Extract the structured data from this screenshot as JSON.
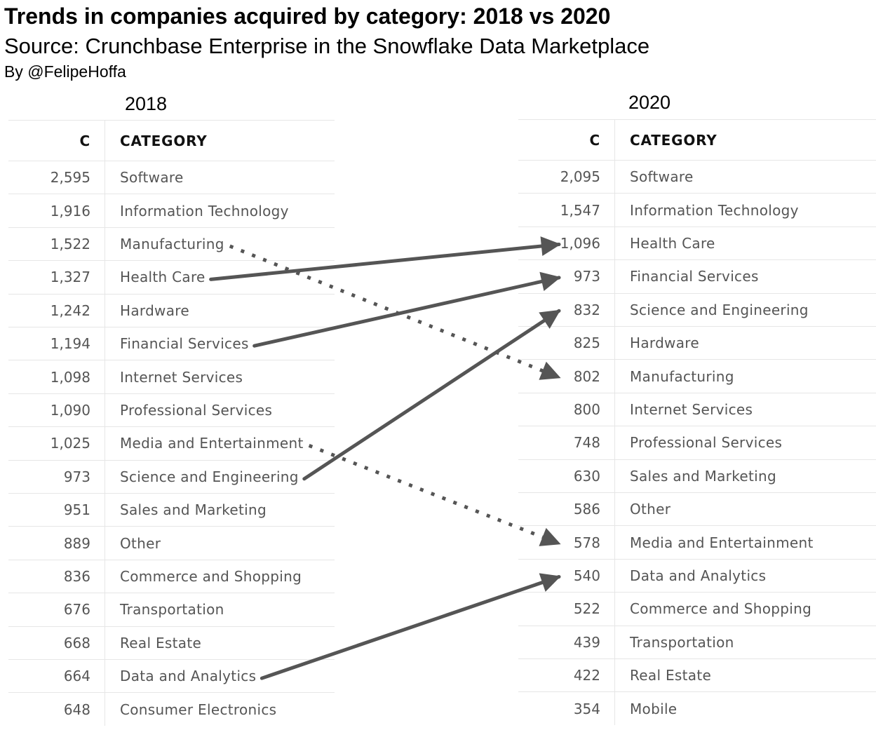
{
  "title": "Trends in companies acquired by category: 2018 vs 2020",
  "subtitle": "Source: Crunchbase Enterprise in the Snowflake Data Marketplace",
  "byline": "By @FelipeHoffa",
  "colors": {
    "arrow": "#555555",
    "grid": "#e6e6e6",
    "text": "#555555"
  },
  "chart_data": {
    "type": "table",
    "tables": [
      {
        "year": "2018",
        "headers": {
          "c": "C",
          "category": "CATEGORY"
        },
        "rows": [
          {
            "c": "2,595",
            "category": "Software"
          },
          {
            "c": "1,916",
            "category": "Information Technology"
          },
          {
            "c": "1,522",
            "category": "Manufacturing"
          },
          {
            "c": "1,327",
            "category": "Health Care"
          },
          {
            "c": "1,242",
            "category": "Hardware"
          },
          {
            "c": "1,194",
            "category": "Financial Services"
          },
          {
            "c": "1,098",
            "category": "Internet Services"
          },
          {
            "c": "1,090",
            "category": "Professional Services"
          },
          {
            "c": "1,025",
            "category": "Media and Entertainment"
          },
          {
            "c": "973",
            "category": "Science and Engineering"
          },
          {
            "c": "951",
            "category": "Sales and Marketing"
          },
          {
            "c": "889",
            "category": "Other"
          },
          {
            "c": "836",
            "category": "Commerce and Shopping"
          },
          {
            "c": "676",
            "category": "Transportation"
          },
          {
            "c": "668",
            "category": "Real Estate"
          },
          {
            "c": "664",
            "category": "Data and Analytics"
          },
          {
            "c": "648",
            "category": "Consumer Electronics"
          }
        ]
      },
      {
        "year": "2020",
        "headers": {
          "c": "C",
          "category": "CATEGORY"
        },
        "rows": [
          {
            "c": "2,095",
            "category": "Software"
          },
          {
            "c": "1,547",
            "category": "Information Technology"
          },
          {
            "c": "1,096",
            "category": "Health Care"
          },
          {
            "c": "973",
            "category": "Financial Services"
          },
          {
            "c": "832",
            "category": "Science and Engineering"
          },
          {
            "c": "825",
            "category": "Hardware"
          },
          {
            "c": "802",
            "category": "Manufacturing"
          },
          {
            "c": "800",
            "category": "Internet Services"
          },
          {
            "c": "748",
            "category": "Professional Services"
          },
          {
            "c": "630",
            "category": "Sales and Marketing"
          },
          {
            "c": "586",
            "category": "Other"
          },
          {
            "c": "578",
            "category": "Media and Entertainment"
          },
          {
            "c": "540",
            "category": "Data and Analytics"
          },
          {
            "c": "522",
            "category": "Commerce and Shopping"
          },
          {
            "c": "439",
            "category": "Transportation"
          },
          {
            "c": "422",
            "category": "Real Estate"
          },
          {
            "c": "354",
            "category": "Mobile"
          }
        ]
      }
    ],
    "arrows": [
      {
        "category": "Health Care",
        "style": "solid"
      },
      {
        "category": "Financial Services",
        "style": "solid"
      },
      {
        "category": "Science and Engineering",
        "style": "solid"
      },
      {
        "category": "Data and Analytics",
        "style": "solid"
      },
      {
        "category": "Manufacturing",
        "style": "dotted"
      },
      {
        "category": "Media and Entertainment",
        "style": "dotted"
      }
    ]
  }
}
